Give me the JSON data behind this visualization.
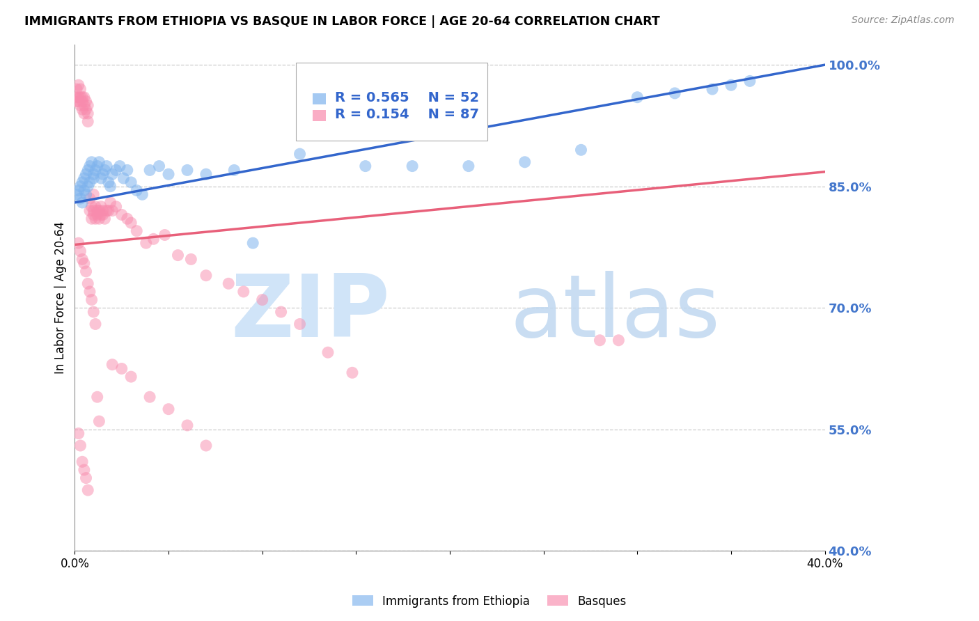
{
  "title": "IMMIGRANTS FROM ETHIOPIA VS BASQUE IN LABOR FORCE | AGE 20-64 CORRELATION CHART",
  "source_text": "Source: ZipAtlas.com",
  "ylabel": "In Labor Force | Age 20-64",
  "xlim": [
    0.0,
    0.4
  ],
  "ylim": [
    0.4,
    1.025
  ],
  "yticks": [
    0.4,
    0.55,
    0.7,
    0.85,
    1.0
  ],
  "ytick_labels": [
    "40.0%",
    "55.0%",
    "70.0%",
    "85.0%",
    "100.0%"
  ],
  "xticks": [
    0.0,
    0.05,
    0.1,
    0.15,
    0.2,
    0.25,
    0.3,
    0.35,
    0.4
  ],
  "xtick_labels": [
    "0.0%",
    "",
    "",
    "",
    "",
    "",
    "",
    "",
    "40.0%"
  ],
  "legend_r1": "0.565",
  "legend_n1": "52",
  "legend_r2": "0.154",
  "legend_n2": "87",
  "blue_color": "#7EB3ED",
  "pink_color": "#F88BAD",
  "blue_line_color": "#3366CC",
  "pink_line_color": "#E8607A",
  "blue_scatter_x": [
    0.001,
    0.002,
    0.003,
    0.003,
    0.004,
    0.004,
    0.005,
    0.005,
    0.006,
    0.006,
    0.007,
    0.007,
    0.008,
    0.008,
    0.009,
    0.01,
    0.01,
    0.011,
    0.012,
    0.013,
    0.014,
    0.015,
    0.016,
    0.017,
    0.018,
    0.019,
    0.02,
    0.022,
    0.024,
    0.026,
    0.028,
    0.03,
    0.033,
    0.036,
    0.04,
    0.045,
    0.05,
    0.06,
    0.07,
    0.085,
    0.095,
    0.12,
    0.155,
    0.18,
    0.21,
    0.24,
    0.27,
    0.3,
    0.32,
    0.34,
    0.35,
    0.36
  ],
  "blue_scatter_y": [
    0.84,
    0.845,
    0.85,
    0.835,
    0.855,
    0.83,
    0.86,
    0.845,
    0.865,
    0.84,
    0.87,
    0.85,
    0.875,
    0.855,
    0.88,
    0.86,
    0.865,
    0.87,
    0.875,
    0.88,
    0.86,
    0.865,
    0.87,
    0.875,
    0.855,
    0.85,
    0.865,
    0.87,
    0.875,
    0.86,
    0.87,
    0.855,
    0.845,
    0.84,
    0.87,
    0.875,
    0.865,
    0.87,
    0.865,
    0.87,
    0.78,
    0.89,
    0.875,
    0.875,
    0.875,
    0.88,
    0.895,
    0.96,
    0.965,
    0.97,
    0.975,
    0.98
  ],
  "pink_scatter_x": [
    0.001,
    0.001,
    0.001,
    0.002,
    0.002,
    0.002,
    0.003,
    0.003,
    0.003,
    0.004,
    0.004,
    0.004,
    0.005,
    0.005,
    0.005,
    0.006,
    0.006,
    0.007,
    0.007,
    0.007,
    0.008,
    0.008,
    0.009,
    0.009,
    0.01,
    0.01,
    0.01,
    0.011,
    0.011,
    0.012,
    0.012,
    0.013,
    0.013,
    0.014,
    0.014,
    0.015,
    0.015,
    0.016,
    0.017,
    0.018,
    0.019,
    0.02,
    0.022,
    0.025,
    0.028,
    0.03,
    0.033,
    0.038,
    0.042,
    0.048,
    0.055,
    0.062,
    0.07,
    0.082,
    0.09,
    0.1,
    0.11,
    0.12,
    0.135,
    0.148,
    0.002,
    0.003,
    0.004,
    0.005,
    0.006,
    0.007,
    0.008,
    0.009,
    0.01,
    0.011,
    0.012,
    0.013,
    0.002,
    0.003,
    0.004,
    0.005,
    0.006,
    0.007,
    0.02,
    0.025,
    0.03,
    0.04,
    0.05,
    0.06,
    0.07,
    0.28,
    0.29
  ],
  "pink_scatter_y": [
    0.955,
    0.96,
    0.97,
    0.955,
    0.96,
    0.975,
    0.95,
    0.96,
    0.97,
    0.955,
    0.96,
    0.945,
    0.95,
    0.96,
    0.94,
    0.945,
    0.955,
    0.94,
    0.95,
    0.93,
    0.835,
    0.82,
    0.825,
    0.81,
    0.84,
    0.82,
    0.815,
    0.825,
    0.81,
    0.82,
    0.815,
    0.82,
    0.81,
    0.825,
    0.815,
    0.82,
    0.815,
    0.81,
    0.82,
    0.82,
    0.83,
    0.82,
    0.825,
    0.815,
    0.81,
    0.805,
    0.795,
    0.78,
    0.785,
    0.79,
    0.765,
    0.76,
    0.74,
    0.73,
    0.72,
    0.71,
    0.695,
    0.68,
    0.645,
    0.62,
    0.78,
    0.77,
    0.76,
    0.755,
    0.745,
    0.73,
    0.72,
    0.71,
    0.695,
    0.68,
    0.59,
    0.56,
    0.545,
    0.53,
    0.51,
    0.5,
    0.49,
    0.475,
    0.63,
    0.625,
    0.615,
    0.59,
    0.575,
    0.555,
    0.53,
    0.66,
    0.66
  ]
}
